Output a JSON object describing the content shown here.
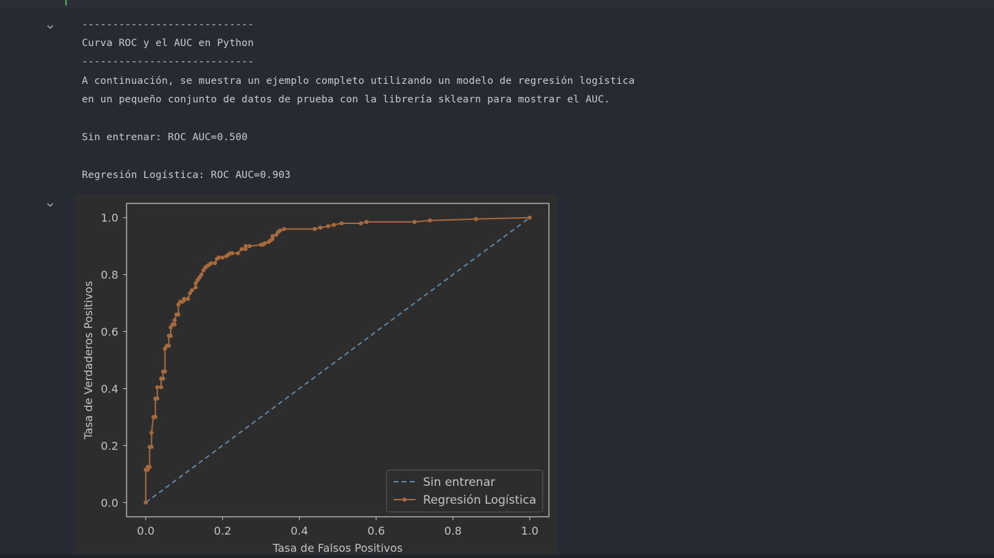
{
  "output": {
    "lines": [
      "----------------------------",
      "Curva ROC y el AUC en Python",
      "----------------------------",
      "A continuación, se muestra un ejemplo completo utilizando un modelo de regresión logística",
      "en un pequeño conjunto de datos de prueba con la librería sklearn para mostrar el AUC.",
      "Sin entrenar: ROC AUC=0.500",
      "Regresión Logística: ROC AUC=0.903"
    ]
  },
  "icons": {
    "collapse": "chevron-down-icon"
  },
  "colors": {
    "background": "#262a33",
    "plot_background": "#2d2d2d",
    "text": "#c9ccd3",
    "series_no_skill": "#5f87a8",
    "series_logistic": "#a66a3c"
  },
  "chart_data": {
    "type": "line",
    "xlabel": "Tasa de Falsos Positivos",
    "ylabel": "Tasa de Verdaderos Positivos",
    "xlim": [
      -0.05,
      1.05
    ],
    "ylim": [
      -0.05,
      1.05
    ],
    "xticks": [
      "0.0",
      "0.2",
      "0.4",
      "0.6",
      "0.8",
      "1.0"
    ],
    "yticks": [
      "0.0",
      "0.2",
      "0.4",
      "0.6",
      "0.8",
      "1.0"
    ],
    "legend_position": "bottom-right",
    "series": [
      {
        "name": "Sin entrenar",
        "style": "dashed",
        "x": [
          0.0,
          1.0
        ],
        "y": [
          0.0,
          1.0
        ]
      },
      {
        "name": "Regresión Logística",
        "style": "solid-marker",
        "x": [
          0.0,
          0.0,
          0.005,
          0.005,
          0.01,
          0.01,
          0.015,
          0.015,
          0.02,
          0.025,
          0.025,
          0.03,
          0.03,
          0.04,
          0.04,
          0.045,
          0.045,
          0.05,
          0.05,
          0.055,
          0.06,
          0.06,
          0.065,
          0.065,
          0.07,
          0.075,
          0.075,
          0.08,
          0.085,
          0.085,
          0.09,
          0.095,
          0.1,
          0.1,
          0.11,
          0.115,
          0.12,
          0.13,
          0.13,
          0.135,
          0.14,
          0.145,
          0.15,
          0.155,
          0.16,
          0.165,
          0.17,
          0.18,
          0.185,
          0.19,
          0.2,
          0.21,
          0.215,
          0.22,
          0.225,
          0.24,
          0.25,
          0.26,
          0.26,
          0.27,
          0.3,
          0.305,
          0.31,
          0.32,
          0.325,
          0.33,
          0.33,
          0.34,
          0.345,
          0.35,
          0.36,
          0.44,
          0.455,
          0.475,
          0.49,
          0.51,
          0.56,
          0.575,
          0.7,
          0.74,
          0.86,
          1.0
        ],
        "y": [
          0.0,
          0.115,
          0.115,
          0.125,
          0.125,
          0.195,
          0.195,
          0.245,
          0.3,
          0.3,
          0.365,
          0.365,
          0.405,
          0.405,
          0.435,
          0.435,
          0.46,
          0.46,
          0.54,
          0.55,
          0.55,
          0.585,
          0.585,
          0.615,
          0.625,
          0.625,
          0.64,
          0.66,
          0.66,
          0.695,
          0.705,
          0.705,
          0.71,
          0.715,
          0.715,
          0.735,
          0.745,
          0.755,
          0.77,
          0.78,
          0.79,
          0.8,
          0.815,
          0.825,
          0.83,
          0.835,
          0.84,
          0.84,
          0.855,
          0.86,
          0.86,
          0.865,
          0.87,
          0.875,
          0.875,
          0.875,
          0.89,
          0.89,
          0.9,
          0.9,
          0.905,
          0.905,
          0.91,
          0.915,
          0.92,
          0.925,
          0.935,
          0.94,
          0.95,
          0.955,
          0.96,
          0.96,
          0.965,
          0.97,
          0.975,
          0.98,
          0.98,
          0.985,
          0.985,
          0.99,
          0.995,
          1.0
        ]
      }
    ]
  }
}
